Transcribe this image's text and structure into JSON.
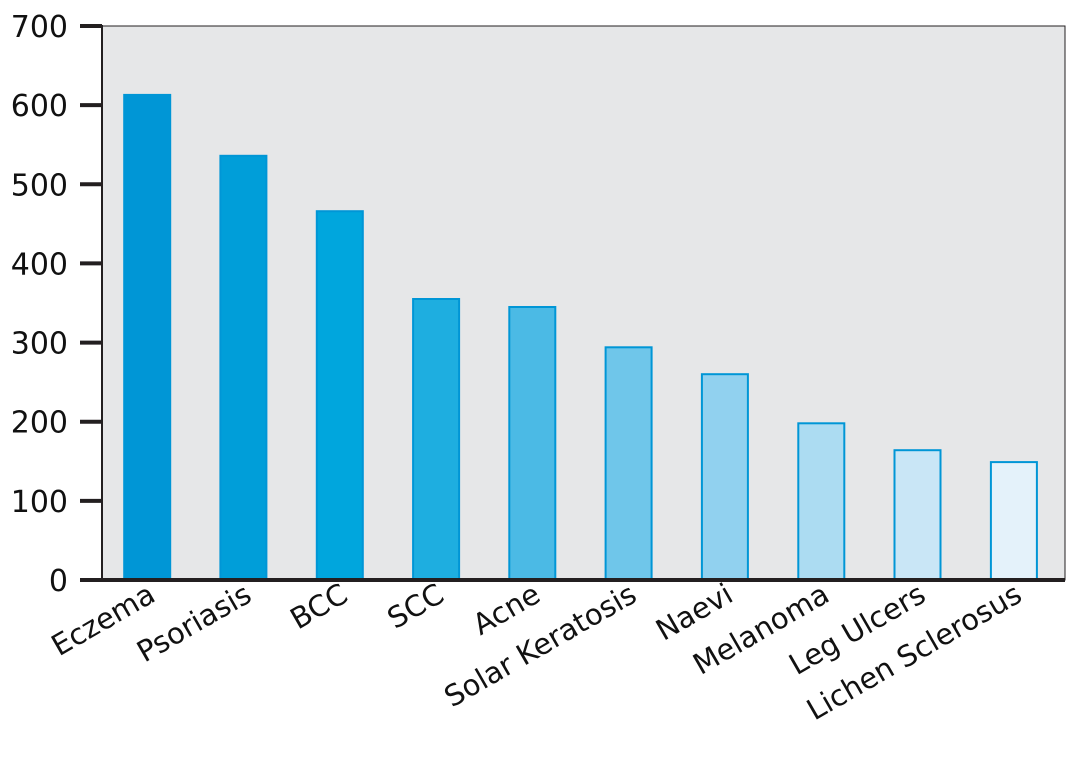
{
  "chart_data": {
    "type": "bar",
    "categories": [
      "Eczema",
      "Psoriasis",
      "BCC",
      "SCC",
      "Acne",
      "Solar Keratosis",
      "Naevi",
      "Melanoma",
      "Leg Ulcers",
      "Lichen Sclerosus"
    ],
    "values": [
      613,
      536,
      466,
      355,
      345,
      294,
      260,
      198,
      164,
      149
    ],
    "ylim": [
      0,
      700
    ],
    "yticks": [
      "0",
      "100",
      "200",
      "300",
      "400",
      "500",
      "600",
      "700"
    ],
    "title": "",
    "xlabel": "",
    "ylabel": "",
    "grid": false,
    "colors": {
      "plot_background": "#e6e7e8",
      "axis": "#231f20",
      "bar_stroke": "#0096d6",
      "bar_fills": [
        "#0096d6",
        "#009ed9",
        "#00a6dd",
        "#1eaee0",
        "#4bbae5",
        "#6fc6ea",
        "#91d1ef",
        "#acdcf2",
        "#c9e6f6",
        "#e4f2fa"
      ]
    }
  }
}
